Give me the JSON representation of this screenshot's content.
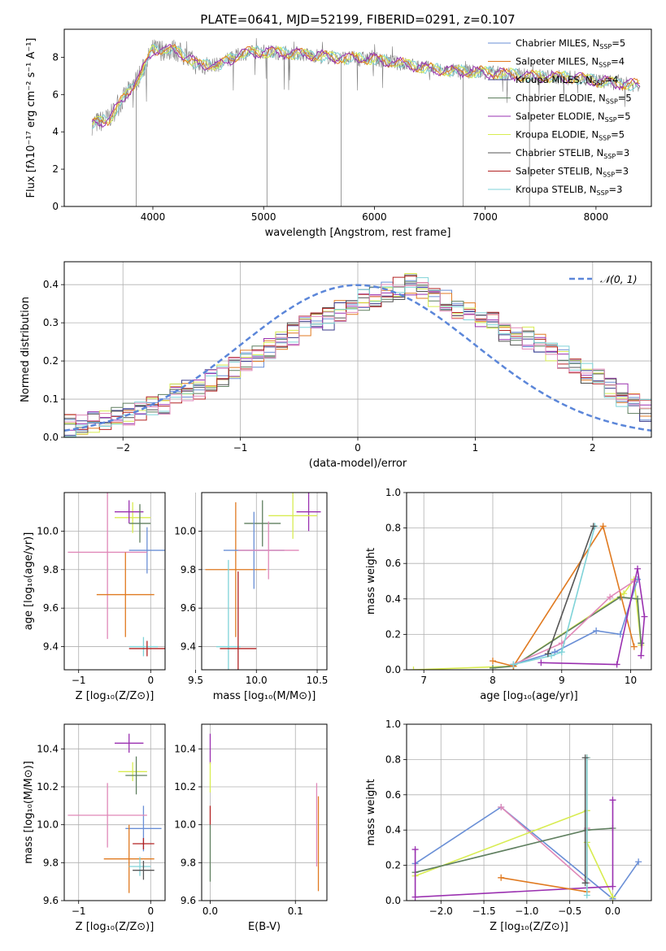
{
  "title": "PLATE=0641, MJD=52199, FIBERID=0291, z=0.107",
  "colors": {
    "chabrier_miles": "#6a8fd6",
    "salpeter_miles": "#e07a20",
    "kroupa_miles": "#3a3a8a",
    "chabrier_elodie": "#5f7f5f",
    "salpeter_elodie": "#9a30b0",
    "kroupa_elodie": "#d8ec50",
    "chabrier_stelib": "#555555",
    "salpeter_stelib": "#b22222",
    "kroupa_stelib": "#7fd3d8",
    "pink": "#e088b8",
    "gaussian": "#5b86d9",
    "data_gray": "#808080"
  },
  "chart_data": [
    {
      "id": "spectrum",
      "type": "line",
      "xlabel": "wavelength [Angstrom, rest frame]",
      "ylabel": "Flux [fλ10⁻¹⁷ erg cm⁻² s⁻¹ A⁻¹]",
      "xlim": [
        3200,
        8500
      ],
      "ylim": [
        0,
        9.5
      ],
      "xticks": [
        "4000",
        "5000",
        "6000",
        "7000",
        "8000"
      ],
      "yticks": [
        "0",
        "2",
        "4",
        "6",
        "8"
      ],
      "legend_position": "right",
      "legend": [
        "Chabrier MILES, N_SSP=5",
        "Salpeter MILES, N_SSP=4",
        "Kroupa MILES, N_SSP=4",
        "Chabrier ELODIE, N_SSP=5",
        "Salpeter ELODIE, N_SSP=5",
        "Kroupa ELODIE, N_SSP=5",
        "Chabrier STELIB, N_SSP=3",
        "Salpeter STELIB, N_SSP=3",
        "Kroupa STELIB, N_SSP=3"
      ],
      "continuum": {
        "x": [
          3450,
          3600,
          3800,
          3900,
          4000,
          4200,
          4400,
          4600,
          4800,
          5000,
          5300,
          5600,
          6000,
          6300,
          6600,
          7000,
          7400,
          7800,
          8200,
          8400
        ],
        "y": [
          4.4,
          4.7,
          6.3,
          7.2,
          8.4,
          8.4,
          7.6,
          7.6,
          8.2,
          8.3,
          8.2,
          8.0,
          7.9,
          7.6,
          7.3,
          7.2,
          7.0,
          6.9,
          6.6,
          6.5
        ]
      }
    },
    {
      "id": "residuals",
      "type": "line",
      "xlabel": "(data-model)/error",
      "ylabel": "Normed distribution",
      "xlim": [
        -2.5,
        2.5
      ],
      "ylim": [
        0,
        0.46
      ],
      "xticks": [
        "−2",
        "−1",
        "0",
        "1",
        "2"
      ],
      "yticks": [
        "0.0",
        "0.1",
        "0.2",
        "0.3",
        "0.4"
      ],
      "legend_position": "top-right",
      "legend": [
        "𝒩(0, 1)"
      ],
      "bin_width": 0.1,
      "bin_start": -2.5,
      "base_hist": [
        0.03,
        0.035,
        0.04,
        0.045,
        0.05,
        0.06,
        0.07,
        0.08,
        0.09,
        0.11,
        0.12,
        0.13,
        0.15,
        0.16,
        0.18,
        0.2,
        0.21,
        0.23,
        0.25,
        0.27,
        0.29,
        0.3,
        0.31,
        0.33,
        0.34,
        0.36,
        0.37,
        0.38,
        0.39,
        0.4,
        0.39,
        0.37,
        0.36,
        0.34,
        0.33,
        0.31,
        0.3,
        0.28,
        0.27,
        0.26,
        0.25,
        0.23,
        0.21,
        0.19,
        0.17,
        0.15,
        0.13,
        0.11,
        0.09,
        0.07
      ]
    },
    {
      "id": "age_vs_Z",
      "type": "scatter",
      "xlabel": "Z [log₁₀(Z/Z⊙)]",
      "ylabel": "age  [log₁₀(age/yr)]",
      "xlim": [
        -1.2,
        0.2
      ],
      "ylim": [
        9.28,
        10.2
      ],
      "xticks": [
        "−1",
        "0"
      ],
      "yticks": [
        "9.4",
        "9.6",
        "9.8",
        "10.0"
      ],
      "points": [
        {
          "c": "kroupa_elodie",
          "x": -0.25,
          "y": 10.07,
          "xe": 0.25,
          "ye": 0.08
        },
        {
          "c": "salpeter_elodie",
          "x": -0.3,
          "y": 10.1,
          "xe": 0.2,
          "ye": 0.06
        },
        {
          "c": "chabrier_elodie",
          "x": -0.15,
          "y": 10.04,
          "xe": 0.15,
          "ye": 0.1
        },
        {
          "c": "chabrier_miles",
          "x": -0.05,
          "y": 9.9,
          "xe": 0.25,
          "ye": 0.12
        },
        {
          "c": "pink",
          "x": -0.6,
          "y": 9.89,
          "xe": 0.55,
          "ye": 0.45
        },
        {
          "c": "salpeter_miles",
          "x": -0.35,
          "y": 9.67,
          "xe": 0.4,
          "ye": 0.22
        },
        {
          "c": "kroupa_stelib",
          "x": -0.1,
          "y": 9.4,
          "xe": 0.2,
          "ye": 0.05
        },
        {
          "c": "salpeter_stelib",
          "x": -0.05,
          "y": 9.39,
          "xe": 0.25,
          "ye": 0.04
        }
      ]
    },
    {
      "id": "age_vs_mass",
      "type": "scatter",
      "xlabel": "mass [log₁₀(M/M⊙)]",
      "ylabel": "",
      "xlim": [
        9.55,
        10.58
      ],
      "ylim": [
        9.28,
        10.2
      ],
      "xticks": [
        "9.5",
        "10.0",
        "10.5"
      ],
      "yticks": [
        "9.4",
        "9.6",
        "9.8",
        "10.0"
      ],
      "points": [
        {
          "c": "salpeter_elodie",
          "x": 10.43,
          "y": 10.1,
          "xe": 0.1,
          "ye": 0.1
        },
        {
          "c": "kroupa_elodie",
          "x": 10.3,
          "y": 10.08,
          "xe": 0.2,
          "ye": 0.12
        },
        {
          "c": "salpeter_miles",
          "x": 9.83,
          "y": 9.8,
          "xe": 0.25,
          "ye": 0.35
        },
        {
          "c": "chabrier_elodie",
          "x": 10.05,
          "y": 10.04,
          "xe": 0.15,
          "ye": 0.12
        },
        {
          "c": "chabrier_miles",
          "x": 9.98,
          "y": 9.9,
          "xe": 0.25,
          "ye": 0.2
        },
        {
          "c": "pink",
          "x": 10.1,
          "y": 9.9,
          "xe": 0.25,
          "ye": 0.15
        },
        {
          "c": "kroupa_stelib",
          "x": 9.77,
          "y": 9.4,
          "xe": 0.1,
          "ye": 0.45
        },
        {
          "c": "salpeter_stelib",
          "x": 9.85,
          "y": 9.39,
          "xe": 0.15,
          "ye": 0.4
        }
      ]
    },
    {
      "id": "weight_vs_age",
      "type": "line",
      "xlabel": "age  [log₁₀(age/yr)]",
      "ylabel": "mass weight",
      "xlim": [
        6.75,
        10.3
      ],
      "ylim": [
        0,
        1
      ],
      "xticks": [
        "7",
        "8",
        "9",
        "10"
      ],
      "yticks": [
        "0.0",
        "0.2",
        "0.4",
        "0.6",
        "0.8",
        "1.0"
      ],
      "series": [
        {
          "c": "kroupa_elodie",
          "x": [
            6.85,
            8.3,
            9.9,
            10.05,
            10.15
          ],
          "y": [
            0.0,
            0.02,
            0.43,
            0.51,
            0.14
          ]
        },
        {
          "c": "chabrier_elodie",
          "x": [
            8.0,
            8.3,
            9.85,
            10.1,
            10.15
          ],
          "y": [
            0.01,
            0.02,
            0.41,
            0.4,
            0.15
          ]
        },
        {
          "c": "salpeter_miles",
          "x": [
            8.0,
            8.3,
            9.6,
            10.05
          ],
          "y": [
            0.05,
            0.02,
            0.81,
            0.13
          ]
        },
        {
          "c": "chabrier_miles",
          "x": [
            8.3,
            8.9,
            9.5,
            9.85,
            10.1
          ],
          "y": [
            0.03,
            0.1,
            0.22,
            0.2,
            0.51
          ]
        },
        {
          "c": "pink",
          "x": [
            8.3,
            9.0,
            9.7,
            10.05
          ],
          "y": [
            0.03,
            0.15,
            0.41,
            0.5
          ]
        },
        {
          "c": "salpeter_elodie",
          "x": [
            8.7,
            9.8,
            10.1,
            10.2,
            10.15
          ],
          "y": [
            0.04,
            0.03,
            0.57,
            0.3,
            0.08
          ]
        },
        {
          "c": "kroupa_stelib",
          "x": [
            8.3,
            8.85,
            9.0,
            9.48
          ],
          "y": [
            0.03,
            0.08,
            0.1,
            0.81
          ]
        },
        {
          "c": "chabrier_stelib",
          "x": [
            8.8,
            9.46
          ],
          "y": [
            0.09,
            0.81
          ]
        }
      ]
    },
    {
      "id": "mass_vs_Z",
      "type": "scatter",
      "xlabel": "Z [log₁₀(Z/Z⊙)]",
      "ylabel": "mass [log₁₀(M/M⊙)]",
      "xlim": [
        -1.2,
        0.2
      ],
      "ylim": [
        9.6,
        10.53
      ],
      "xticks": [
        "−1",
        "0"
      ],
      "yticks": [
        "9.6",
        "9.8",
        "10.0",
        "10.2",
        "10.4"
      ],
      "points": [
        {
          "c": "salpeter_elodie",
          "x": -0.3,
          "y": 10.43,
          "xe": 0.2,
          "ye": 0.05
        },
        {
          "c": "kroupa_elodie",
          "x": -0.25,
          "y": 10.28,
          "xe": 0.2,
          "ye": 0.05
        },
        {
          "c": "chabrier_elodie",
          "x": -0.2,
          "y": 10.26,
          "xe": 0.15,
          "ye": 0.1
        },
        {
          "c": "chabrier_miles",
          "x": -0.1,
          "y": 9.98,
          "xe": 0.25,
          "ye": 0.12
        },
        {
          "c": "pink",
          "x": -0.6,
          "y": 10.05,
          "xe": 0.55,
          "ye": 0.17
        },
        {
          "c": "salpeter_miles",
          "x": -0.3,
          "y": 9.82,
          "xe": 0.35,
          "ye": 0.18
        },
        {
          "c": "salpeter_stelib",
          "x": -0.1,
          "y": 9.9,
          "xe": 0.15,
          "ye": 0.03
        },
        {
          "c": "kroupa_stelib",
          "x": -0.15,
          "y": 9.78,
          "xe": 0.15,
          "ye": 0.05
        },
        {
          "c": "chabrier_stelib",
          "x": -0.1,
          "y": 9.76,
          "xe": 0.15,
          "ye": 0.05
        }
      ]
    },
    {
      "id": "mass_vs_ebv",
      "type": "scatter",
      "xlabel": "E(B-V)",
      "ylabel": "",
      "xlim": [
        -0.01,
        0.137
      ],
      "ylim": [
        9.6,
        10.53
      ],
      "xticks": [
        "0.0",
        "0.1"
      ],
      "yticks": [
        "9.6",
        "9.8",
        "10.0",
        "10.2",
        "10.4"
      ],
      "points": [
        {
          "c": "salpeter_elodie",
          "x": 0.0,
          "y": 10.4,
          "xe": 0.0,
          "ye": 0.08
        },
        {
          "c": "kroupa_elodie",
          "x": 0.0,
          "y": 10.25,
          "xe": 0.0,
          "ye": 0.08
        },
        {
          "c": "salpeter_stelib",
          "x": 0.0,
          "y": 10.05,
          "xe": 0.0,
          "ye": 0.05
        },
        {
          "c": "chabrier_elodie",
          "x": 0.0,
          "y": 9.85,
          "xe": 0.0,
          "ye": 0.15
        },
        {
          "c": "pink",
          "x": 0.125,
          "y": 10.0,
          "xe": 0.0,
          "ye": 0.22
        },
        {
          "c": "salpeter_miles",
          "x": 0.127,
          "y": 9.9,
          "xe": 0.0,
          "ye": 0.25
        }
      ]
    },
    {
      "id": "weight_vs_Z",
      "type": "line",
      "xlabel": "Z [log₁₀(Z/Z⊙)]",
      "ylabel": "mass weight",
      "xlim": [
        -2.4,
        0.45
      ],
      "ylim": [
        0,
        1
      ],
      "xticks": [
        "−2.0",
        "−1.5",
        "−1.0",
        "−0.5",
        "0.0"
      ],
      "yticks": [
        "0.0",
        "0.2",
        "0.4",
        "0.6",
        "0.8",
        "1.0"
      ],
      "series": [
        {
          "c": "chabrier_miles",
          "x": [
            -2.3,
            -1.3,
            0.0,
            0.3
          ],
          "y": [
            0.21,
            0.53,
            0.01,
            0.22
          ]
        },
        {
          "c": "pink",
          "x": [
            -1.3,
            -0.3,
            -0.3
          ],
          "y": [
            0.53,
            0.1,
            0.41
          ]
        },
        {
          "c": "kroupa_elodie",
          "x": [
            -2.3,
            -0.3,
            -0.3,
            0.0
          ],
          "y": [
            0.14,
            0.51,
            0.33,
            0.02
          ]
        },
        {
          "c": "chabrier_elodie",
          "x": [
            -2.3,
            -0.3,
            0.0
          ],
          "y": [
            0.16,
            0.4,
            0.41
          ]
        },
        {
          "c": "salpeter_elodie",
          "x": [
            -2.3,
            -2.3,
            0.0,
            0.0
          ],
          "y": [
            0.29,
            0.02,
            0.08,
            0.57
          ]
        },
        {
          "c": "salpeter_miles",
          "x": [
            -1.3,
            -0.3,
            -0.3
          ],
          "y": [
            0.13,
            0.05,
            0.81
          ]
        },
        {
          "c": "kroupa_stelib",
          "x": [
            -0.3,
            -0.3
          ],
          "y": [
            0.03,
            0.81
          ]
        },
        {
          "c": "chabrier_stelib",
          "x": [
            -0.32,
            -0.32
          ],
          "y": [
            0.1,
            0.81
          ]
        }
      ]
    }
  ]
}
